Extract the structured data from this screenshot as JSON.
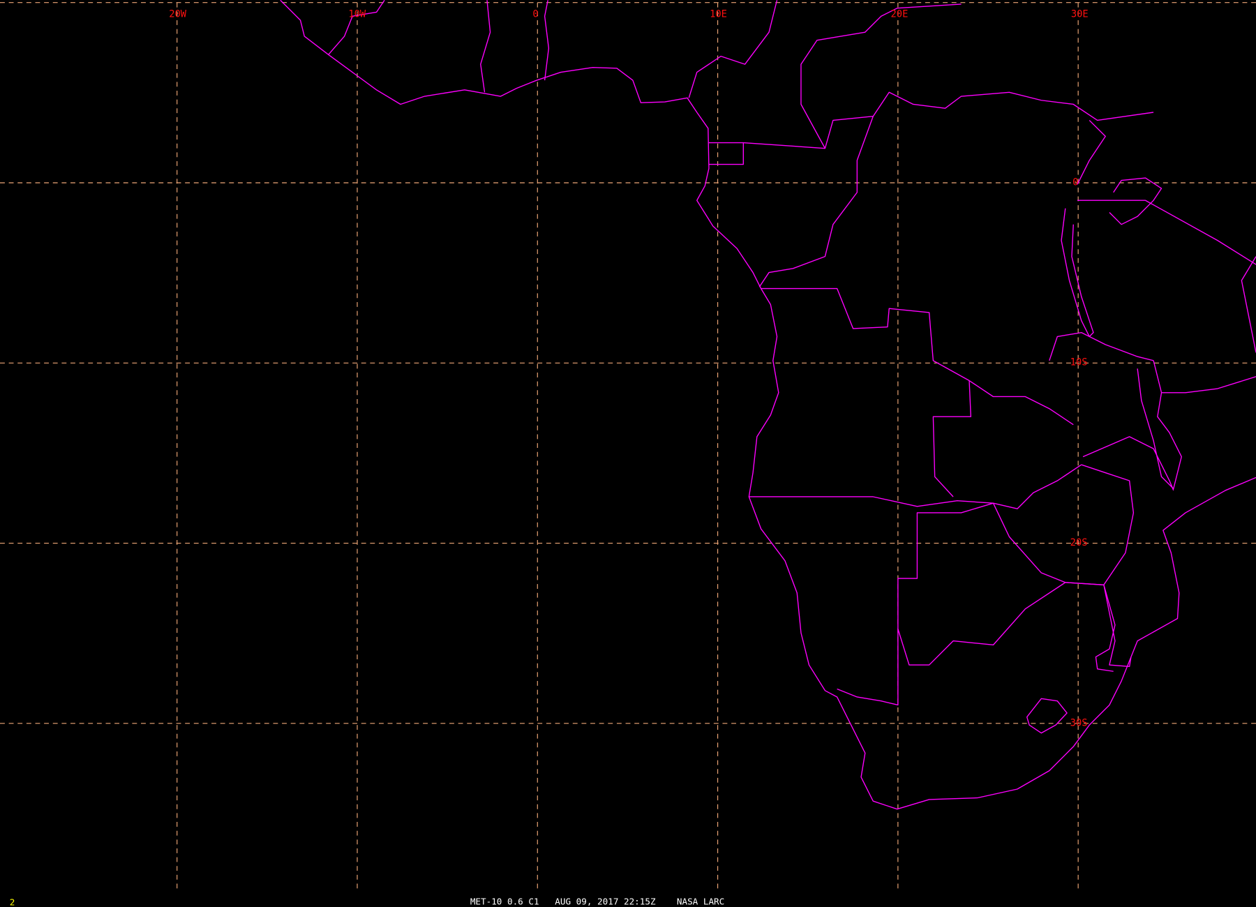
{
  "map": {
    "background": "#000000",
    "coastline_color": "#ff00ff",
    "grid_color": "#f0a878",
    "label_color": "#ff1010",
    "longitude_labels": [
      "20W",
      "10W",
      "0",
      "10E",
      "20E",
      "30E"
    ],
    "latitude_labels": [
      "0",
      "10S",
      "20S",
      "30S"
    ]
  },
  "footer": {
    "frame_number": "2",
    "caption": "MET-10 0.6 C1   AUG 09, 2017 22:15Z    NASA LARC"
  }
}
